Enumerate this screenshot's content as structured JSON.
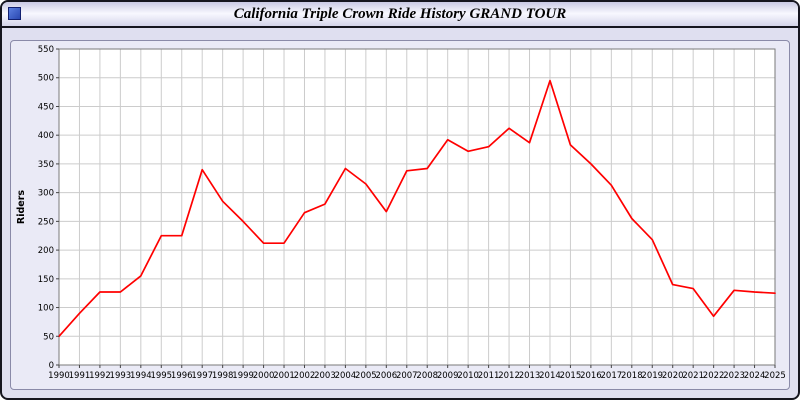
{
  "window": {
    "title": "California Triple Crown Ride History GRAND TOUR"
  },
  "chart_data": {
    "type": "line",
    "title": "California Triple Crown Ride History GRAND TOUR",
    "xlabel": "",
    "ylabel": "Riders",
    "ylim": [
      0,
      550
    ],
    "y_ticks": [
      0,
      50,
      100,
      150,
      200,
      250,
      300,
      350,
      400,
      450,
      500,
      550
    ],
    "grid": true,
    "legend_position": "none",
    "plot_background": "#ffffff",
    "grid_color": "#cccccc",
    "x": [
      1990,
      1991,
      1992,
      1993,
      1994,
      1995,
      1996,
      1997,
      1998,
      1999,
      2000,
      2001,
      2002,
      2003,
      2004,
      2005,
      2006,
      2007,
      2008,
      2009,
      2010,
      2011,
      2012,
      2013,
      2014,
      2015,
      2016,
      2017,
      2018,
      2019,
      2020,
      2021,
      2022,
      2023,
      2024,
      2025
    ],
    "series": [
      {
        "name": "Riders",
        "color": "#ff0000",
        "values": [
          50,
          90,
          127,
          127,
          155,
          225,
          225,
          340,
          285,
          250,
          212,
          212,
          265,
          280,
          342,
          315,
          267,
          338,
          342,
          392,
          372,
          380,
          412,
          387,
          495,
          383,
          350,
          313,
          255,
          218,
          140,
          133,
          85,
          130,
          127,
          125
        ]
      }
    ]
  }
}
